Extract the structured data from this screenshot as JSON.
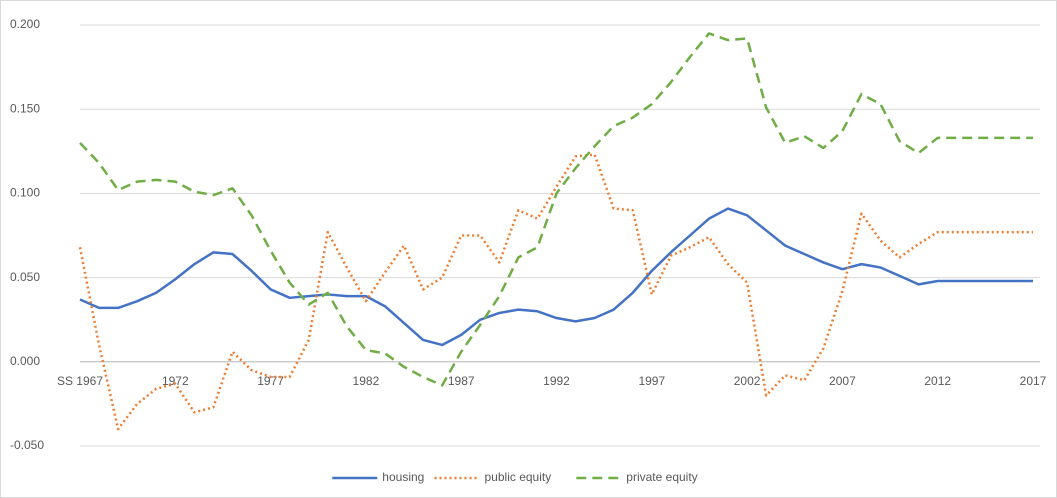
{
  "chart_data": {
    "type": "line",
    "categories": [
      "SS 1967",
      null,
      null,
      null,
      null,
      "1972",
      null,
      null,
      null,
      null,
      "1977",
      null,
      null,
      null,
      null,
      "1982",
      null,
      null,
      null,
      null,
      "1987",
      null,
      null,
      null,
      null,
      "1992",
      null,
      null,
      null,
      null,
      "1997",
      null,
      null,
      null,
      null,
      "2002",
      null,
      null,
      null,
      null,
      "2007",
      null,
      null,
      null,
      null,
      "2012",
      null,
      null,
      null,
      null,
      "2017"
    ],
    "series": [
      {
        "name": "housing",
        "color": "#4472c4",
        "dash": "solid",
        "values": [
          0.037,
          0.032,
          0.032,
          0.036,
          0.041,
          0.049,
          0.058,
          0.065,
          0.064,
          0.054,
          0.043,
          0.038,
          0.039,
          0.04,
          0.039,
          0.039,
          0.033,
          0.023,
          0.013,
          0.01,
          0.016,
          0.025,
          0.029,
          0.031,
          0.03,
          0.026,
          0.024,
          0.026,
          0.031,
          0.041,
          0.054,
          0.065,
          0.075,
          0.085,
          0.091,
          0.087,
          0.078,
          0.069,
          0.064,
          0.059,
          0.055,
          0.058,
          0.056,
          0.051,
          0.046,
          0.048,
          0.048,
          0.048,
          0.048,
          0.048,
          0.048
        ]
      },
      {
        "name": "public equity",
        "color": "#ed7d31",
        "dash": "dotted",
        "values": [
          0.068,
          0.01,
          -0.04,
          -0.025,
          -0.016,
          -0.013,
          -0.03,
          -0.027,
          0.006,
          -0.005,
          -0.009,
          -0.009,
          0.013,
          0.077,
          0.056,
          0.036,
          0.053,
          0.069,
          0.043,
          0.05,
          0.075,
          0.075,
          0.059,
          0.09,
          0.085,
          0.104,
          0.122,
          0.123,
          0.091,
          0.09,
          0.04,
          0.063,
          0.068,
          0.074,
          0.058,
          0.047,
          -0.02,
          -0.008,
          -0.011,
          0.008,
          0.042,
          0.088,
          0.072,
          0.062,
          0.07,
          0.077,
          0.077,
          0.077,
          0.077,
          0.077,
          0.077
        ]
      },
      {
        "name": "private equity",
        "color": "#70ad47",
        "dash": "dashed",
        "values": [
          0.13,
          0.118,
          0.102,
          0.107,
          0.108,
          0.107,
          0.101,
          0.099,
          0.103,
          0.087,
          0.066,
          0.047,
          0.034,
          0.041,
          0.021,
          0.007,
          0.005,
          -0.003,
          -0.009,
          -0.014,
          0.006,
          0.022,
          0.039,
          0.062,
          0.068,
          0.1,
          0.115,
          0.128,
          0.14,
          0.145,
          0.153,
          0.166,
          0.181,
          0.195,
          0.191,
          0.192,
          0.151,
          0.13,
          0.134,
          0.127,
          0.137,
          0.159,
          0.153,
          0.131,
          0.124,
          0.133,
          0.133,
          0.133,
          0.133,
          0.133,
          0.133
        ]
      }
    ],
    "ylim": [
      -0.05,
      0.2
    ],
    "yticks": [
      {
        "value": -0.05,
        "label": "-0.050"
      },
      {
        "value": 0,
        "label": "0.000"
      },
      {
        "value": 0.05,
        "label": "0.050"
      },
      {
        "value": 0.1,
        "label": "0.100"
      },
      {
        "value": 0.15,
        "label": "0.150"
      },
      {
        "value": 0.2,
        "label": "0.200"
      }
    ],
    "grid": true,
    "legend": "bottom"
  }
}
